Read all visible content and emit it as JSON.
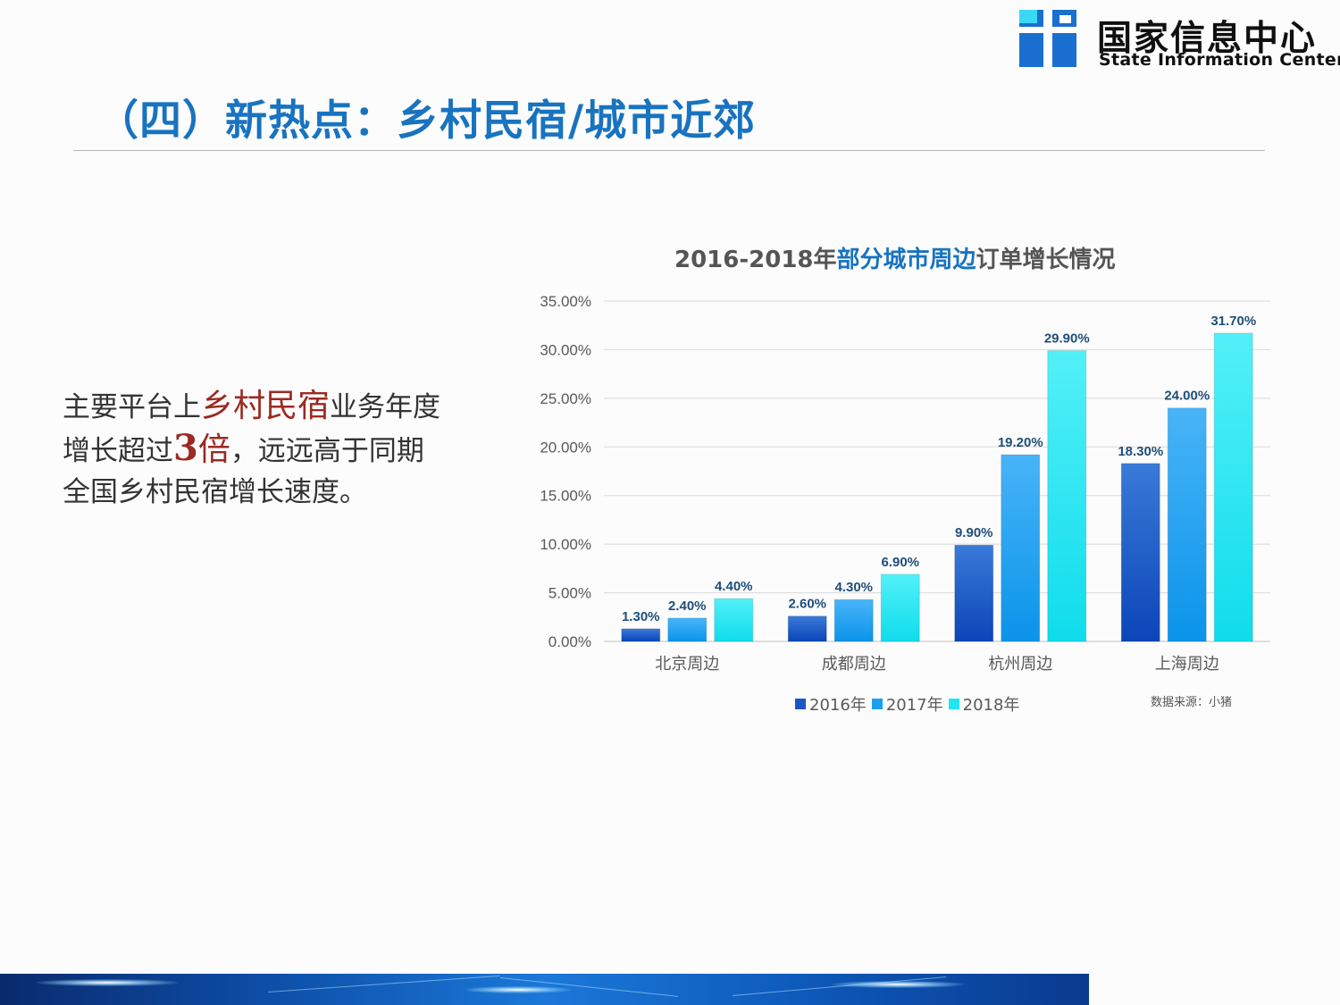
{
  "logo": {
    "cn": "国家信息中心",
    "en": "State Information Center"
  },
  "page_title": "（四）新热点：乡村民宿/城市近郊",
  "body_text": {
    "p1": "主要平台上",
    "hl1": "乡村民宿",
    "p2": "业务年度增长超过",
    "hl2_num": "3",
    "hl2_unit": "倍",
    "p3": "，远远高于同期全国乡村民宿增长速度。"
  },
  "chart_title": {
    "part1": "2016-2018年",
    "part2": "部分城市周边",
    "part3": "订单增长情况"
  },
  "source_note": "数据来源：小猪",
  "colors": {
    "s2016": "#1a56c4",
    "s2017": "#1aa0f0",
    "s2018": "#22e6f2",
    "title_blue": "#1873c0",
    "highlight_red": "#9b2a22"
  },
  "chart_data": {
    "type": "bar",
    "title": "2016-2018年部分城市周边订单增长情况",
    "categories": [
      "北京周边",
      "成都周边",
      "杭州周边",
      "上海周边"
    ],
    "series": [
      {
        "name": "2016年",
        "values": [
          1.3,
          2.6,
          9.9,
          18.3
        ],
        "labels": [
          "1.30%",
          "2.60%",
          "9.90%",
          "18.30%"
        ]
      },
      {
        "name": "2017年",
        "values": [
          2.4,
          4.3,
          19.2,
          24.0
        ],
        "labels": [
          "2.40%",
          "4.30%",
          "19.20%",
          "24.00%"
        ]
      },
      {
        "name": "2018年",
        "values": [
          4.4,
          6.9,
          29.9,
          31.7
        ],
        "labels": [
          "4.40%",
          "6.90%",
          "29.90%",
          "31.70%"
        ]
      }
    ],
    "ylim": [
      0,
      35
    ],
    "yticks": [
      0,
      5,
      10,
      15,
      20,
      25,
      30,
      35
    ],
    "ytick_labels": [
      "0.00%",
      "5.00%",
      "10.00%",
      "15.00%",
      "20.00%",
      "25.00%",
      "30.00%",
      "35.00%"
    ],
    "grid": true,
    "legend": "bottom"
  }
}
